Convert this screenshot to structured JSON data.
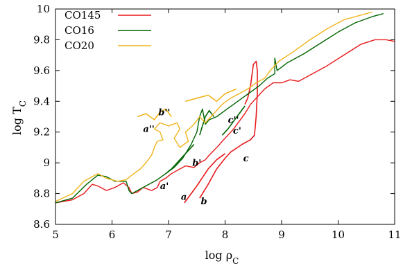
{
  "chart_data": {
    "type": "line",
    "xlabel": "log ρ",
    "xlabel_sub": "C",
    "ylabel": "log T",
    "ylabel_sub": "C",
    "xlim": [
      5,
      11
    ],
    "ylim": [
      8.6,
      10
    ],
    "x_ticks": [
      5,
      6,
      7,
      8,
      9,
      10,
      11
    ],
    "x_tick_labels": [
      "5",
      "6",
      "7",
      "8",
      "9",
      "10",
      "11"
    ],
    "y_ticks": [
      8.6,
      8.8,
      9.0,
      9.2,
      9.4,
      9.6,
      9.8,
      10.0
    ],
    "y_tick_labels": [
      "8.6",
      "8.8",
      "9",
      "9.2",
      "9.4",
      "9.6",
      "9.8",
      "10"
    ],
    "grid": false,
    "legend_position": "top-left",
    "series": [
      {
        "name": "CO145",
        "color": "#e8191b",
        "points": [
          [
            5.0,
            8.74
          ],
          [
            5.3,
            8.76
          ],
          [
            5.5,
            8.8
          ],
          [
            5.65,
            8.86
          ],
          [
            5.75,
            8.85
          ],
          [
            5.9,
            8.82
          ],
          [
            6.05,
            8.84
          ],
          [
            6.2,
            8.87
          ],
          [
            6.3,
            8.84
          ],
          [
            6.35,
            8.8
          ],
          [
            6.45,
            8.81
          ],
          [
            6.55,
            8.84
          ],
          [
            6.7,
            8.82
          ],
          [
            6.8,
            8.84
          ],
          [
            6.85,
            8.88
          ],
          [
            6.95,
            8.9
          ],
          [
            7.05,
            8.93
          ],
          [
            7.2,
            8.96
          ],
          [
            7.3,
            8.98
          ],
          [
            7.45,
            8.97
          ],
          [
            7.55,
            9.0
          ],
          [
            7.65,
            9.02
          ],
          [
            7.72,
            9.05
          ],
          [
            7.8,
            9.08
          ],
          [
            7.88,
            9.11
          ],
          [
            7.95,
            9.14
          ],
          [
            8.05,
            9.18
          ],
          [
            8.15,
            9.22
          ],
          [
            8.25,
            9.27
          ],
          [
            8.35,
            9.32
          ],
          [
            8.45,
            9.38
          ],
          [
            8.55,
            9.42
          ],
          [
            8.6,
            9.44
          ],
          [
            8.7,
            9.48
          ],
          [
            8.85,
            9.52
          ],
          [
            9.0,
            9.52
          ],
          [
            9.15,
            9.54
          ],
          [
            9.3,
            9.53
          ],
          [
            9.5,
            9.57
          ],
          [
            9.8,
            9.63
          ],
          [
            10.1,
            9.7
          ],
          [
            10.4,
            9.77
          ],
          [
            10.65,
            9.8
          ],
          [
            10.85,
            9.8
          ],
          [
            11.0,
            9.79
          ]
        ],
        "segments": [
          [
            [
              7.28,
              8.74
            ],
            [
              7.5,
              8.85
            ],
            [
              7.7,
              8.96
            ],
            [
              7.85,
              9.02
            ],
            [
              8.0,
              9.06
            ]
          ],
          [
            [
              7.55,
              8.77
            ],
            [
              7.7,
              8.86
            ],
            [
              7.85,
              8.96
            ],
            [
              8.0,
              9.03
            ],
            [
              8.1,
              9.07
            ],
            [
              8.3,
              9.12
            ],
            [
              8.45,
              9.15
            ],
            [
              8.52,
              9.18
            ],
            [
              8.55,
              9.3
            ],
            [
              8.57,
              9.45
            ],
            [
              8.57,
              9.6
            ],
            [
              8.55,
              9.66
            ],
            [
              8.5,
              9.64
            ],
            [
              8.45,
              9.5
            ],
            [
              8.4,
              9.42
            ],
            [
              8.35,
              9.38
            ]
          ]
        ]
      },
      {
        "name": "CO16",
        "color": "#006400",
        "points": [
          [
            5.0,
            8.74
          ],
          [
            5.3,
            8.77
          ],
          [
            5.55,
            8.86
          ],
          [
            5.75,
            8.92
          ],
          [
            5.9,
            8.91
          ],
          [
            6.05,
            8.88
          ],
          [
            6.25,
            8.88
          ],
          [
            6.3,
            8.82
          ],
          [
            6.35,
            8.8
          ],
          [
            6.5,
            8.83
          ],
          [
            6.65,
            8.86
          ],
          [
            6.8,
            8.89
          ],
          [
            6.95,
            8.93
          ],
          [
            7.1,
            8.97
          ],
          [
            7.25,
            9.03
          ],
          [
            7.4,
            9.12
          ],
          [
            7.5,
            9.2
          ],
          [
            7.55,
            9.3
          ],
          [
            7.6,
            9.35
          ],
          [
            7.65,
            9.25
          ],
          [
            7.72,
            9.28
          ],
          [
            7.85,
            9.3
          ],
          [
            8.0,
            9.34
          ],
          [
            8.15,
            9.38
          ],
          [
            8.3,
            9.42
          ],
          [
            8.45,
            9.46
          ],
          [
            8.6,
            9.5
          ],
          [
            8.75,
            9.55
          ],
          [
            8.88,
            9.58
          ],
          [
            8.88,
            9.68
          ],
          [
            8.92,
            9.6
          ],
          [
            9.1,
            9.65
          ],
          [
            9.4,
            9.71
          ],
          [
            9.7,
            9.78
          ],
          [
            10.0,
            9.85
          ],
          [
            10.3,
            9.91
          ],
          [
            10.6,
            9.95
          ],
          [
            10.8,
            9.97
          ]
        ],
        "segments": [
          [
            [
              6.95,
              8.93
            ],
            [
              7.05,
              8.96
            ],
            [
              7.2,
              9.02
            ],
            [
              7.35,
              9.08
            ],
            [
              7.45,
              9.12
            ]
          ],
          [
            [
              7.55,
              9.18
            ],
            [
              7.6,
              9.24
            ],
            [
              7.65,
              9.3
            ],
            [
              7.72,
              9.34
            ],
            [
              7.8,
              9.3
            ]
          ],
          [
            [
              7.95,
              9.18
            ],
            [
              8.05,
              9.22
            ],
            [
              8.15,
              9.27
            ],
            [
              8.25,
              9.32
            ],
            [
              8.35,
              9.37
            ]
          ]
        ]
      },
      {
        "name": "CO20",
        "color": "#f0b41c",
        "points": [
          [
            5.0,
            8.75
          ],
          [
            5.3,
            8.8
          ],
          [
            5.5,
            8.88
          ],
          [
            5.65,
            8.91
          ],
          [
            5.75,
            8.93
          ],
          [
            5.9,
            8.9
          ],
          [
            6.1,
            8.88
          ],
          [
            6.25,
            8.89
          ],
          [
            6.35,
            8.92
          ],
          [
            6.5,
            8.96
          ],
          [
            6.6,
            9.0
          ],
          [
            6.7,
            9.05
          ],
          [
            6.75,
            9.1
          ],
          [
            6.8,
            9.14
          ],
          [
            6.9,
            9.15
          ],
          [
            6.85,
            9.2
          ],
          [
            6.75,
            9.22
          ],
          [
            6.85,
            9.26
          ],
          [
            7.0,
            9.24
          ],
          [
            7.15,
            9.26
          ],
          [
            7.2,
            9.22
          ],
          [
            7.1,
            9.16
          ],
          [
            7.2,
            9.1
          ],
          [
            7.35,
            9.14
          ],
          [
            7.3,
            9.2
          ],
          [
            7.45,
            9.25
          ],
          [
            7.55,
            9.3
          ],
          [
            7.65,
            9.26
          ],
          [
            7.8,
            9.32
          ],
          [
            7.95,
            9.38
          ],
          [
            8.1,
            9.42
          ],
          [
            8.25,
            9.45
          ],
          [
            8.4,
            9.48
          ],
          [
            8.55,
            9.52
          ],
          [
            8.7,
            9.55
          ],
          [
            8.8,
            9.6
          ],
          [
            8.95,
            9.66
          ],
          [
            9.2,
            9.72
          ],
          [
            9.5,
            9.8
          ],
          [
            9.8,
            9.87
          ],
          [
            10.1,
            9.93
          ],
          [
            10.4,
            9.96
          ],
          [
            10.6,
            9.98
          ]
        ],
        "segments": [
          [
            [
              6.45,
              9.3
            ],
            [
              6.6,
              9.32
            ],
            [
              6.75,
              9.28
            ],
            [
              6.85,
              9.33
            ],
            [
              6.95,
              9.35
            ],
            [
              7.05,
              9.3
            ]
          ],
          [
            [
              7.3,
              9.4
            ],
            [
              7.5,
              9.42
            ],
            [
              7.7,
              9.44
            ],
            [
              7.85,
              9.4
            ],
            [
              8.0,
              9.45
            ],
            [
              8.2,
              9.48
            ]
          ]
        ]
      }
    ],
    "annotations": [
      {
        "text": "a",
        "x": 7.22,
        "y": 8.76
      },
      {
        "text": "b",
        "x": 7.57,
        "y": 8.73
      },
      {
        "text": "c",
        "x": 8.32,
        "y": 9.01
      },
      {
        "text": "a'",
        "x": 6.85,
        "y": 8.83
      },
      {
        "text": "b'",
        "x": 7.42,
        "y": 8.98
      },
      {
        "text": "c'",
        "x": 8.14,
        "y": 9.19
      },
      {
        "text": "c''",
        "x": 8.05,
        "y": 9.26
      },
      {
        "text": "a''",
        "x": 6.55,
        "y": 9.2
      },
      {
        "text": "b''",
        "x": 6.82,
        "y": 9.31
      }
    ]
  }
}
